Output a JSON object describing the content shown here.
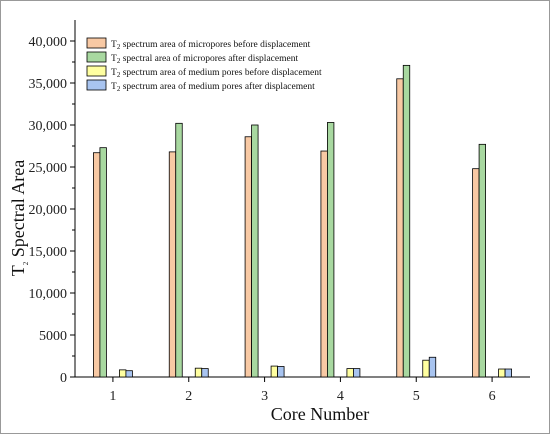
{
  "chart_data": {
    "type": "bar",
    "title": "",
    "xlabel": "Core Number",
    "ylabel_main": "T",
    "ylabel_sub": "2",
    "ylabel_rest": " Spectral Area",
    "categories": [
      "1",
      "2",
      "3",
      "4",
      "5",
      "6"
    ],
    "ylim": [
      0,
      42500
    ],
    "yticks": [
      0,
      5000,
      10000,
      15000,
      20000,
      25000,
      30000,
      35000,
      40000
    ],
    "ytick_labels": [
      "0",
      "5000",
      "10,000",
      "15,000",
      "20,000",
      "25,000",
      "30,000",
      "35,000",
      "40,000"
    ],
    "legend_position": "top-left",
    "series": [
      {
        "name": "T2 spectrum area of micropores before displacement",
        "legend_pre": "T",
        "legend_sub": "2",
        "legend_post": " spectrum area of micropores before displacement",
        "color": "#F8C9A4",
        "values": [
          26700,
          26800,
          28600,
          26900,
          35500,
          24800
        ]
      },
      {
        "name": "T2 spectral area of micropores after displacement",
        "legend_pre": "T",
        "legend_sub": "2",
        "legend_post": " spectral area of micropores after displacement",
        "color": "#A8D8A0",
        "values": [
          27300,
          30200,
          30000,
          30300,
          37100,
          27700
        ]
      },
      {
        "name": "T2 spectrum area of medium pores before displacement",
        "legend_pre": "T",
        "legend_sub": "2",
        "legend_post": " spectrum area of medium pores before displacement",
        "color": "#FFFFA0",
        "values": [
          850,
          1050,
          1300,
          1000,
          2000,
          950
        ]
      },
      {
        "name": "T2 spectrum area of medium pores after displacement",
        "legend_pre": "T",
        "legend_sub": "2",
        "legend_post": " spectrum area of medium pores after displacement",
        "color": "#A8C4F0",
        "values": [
          750,
          1000,
          1250,
          1000,
          2350,
          950
        ]
      }
    ]
  }
}
